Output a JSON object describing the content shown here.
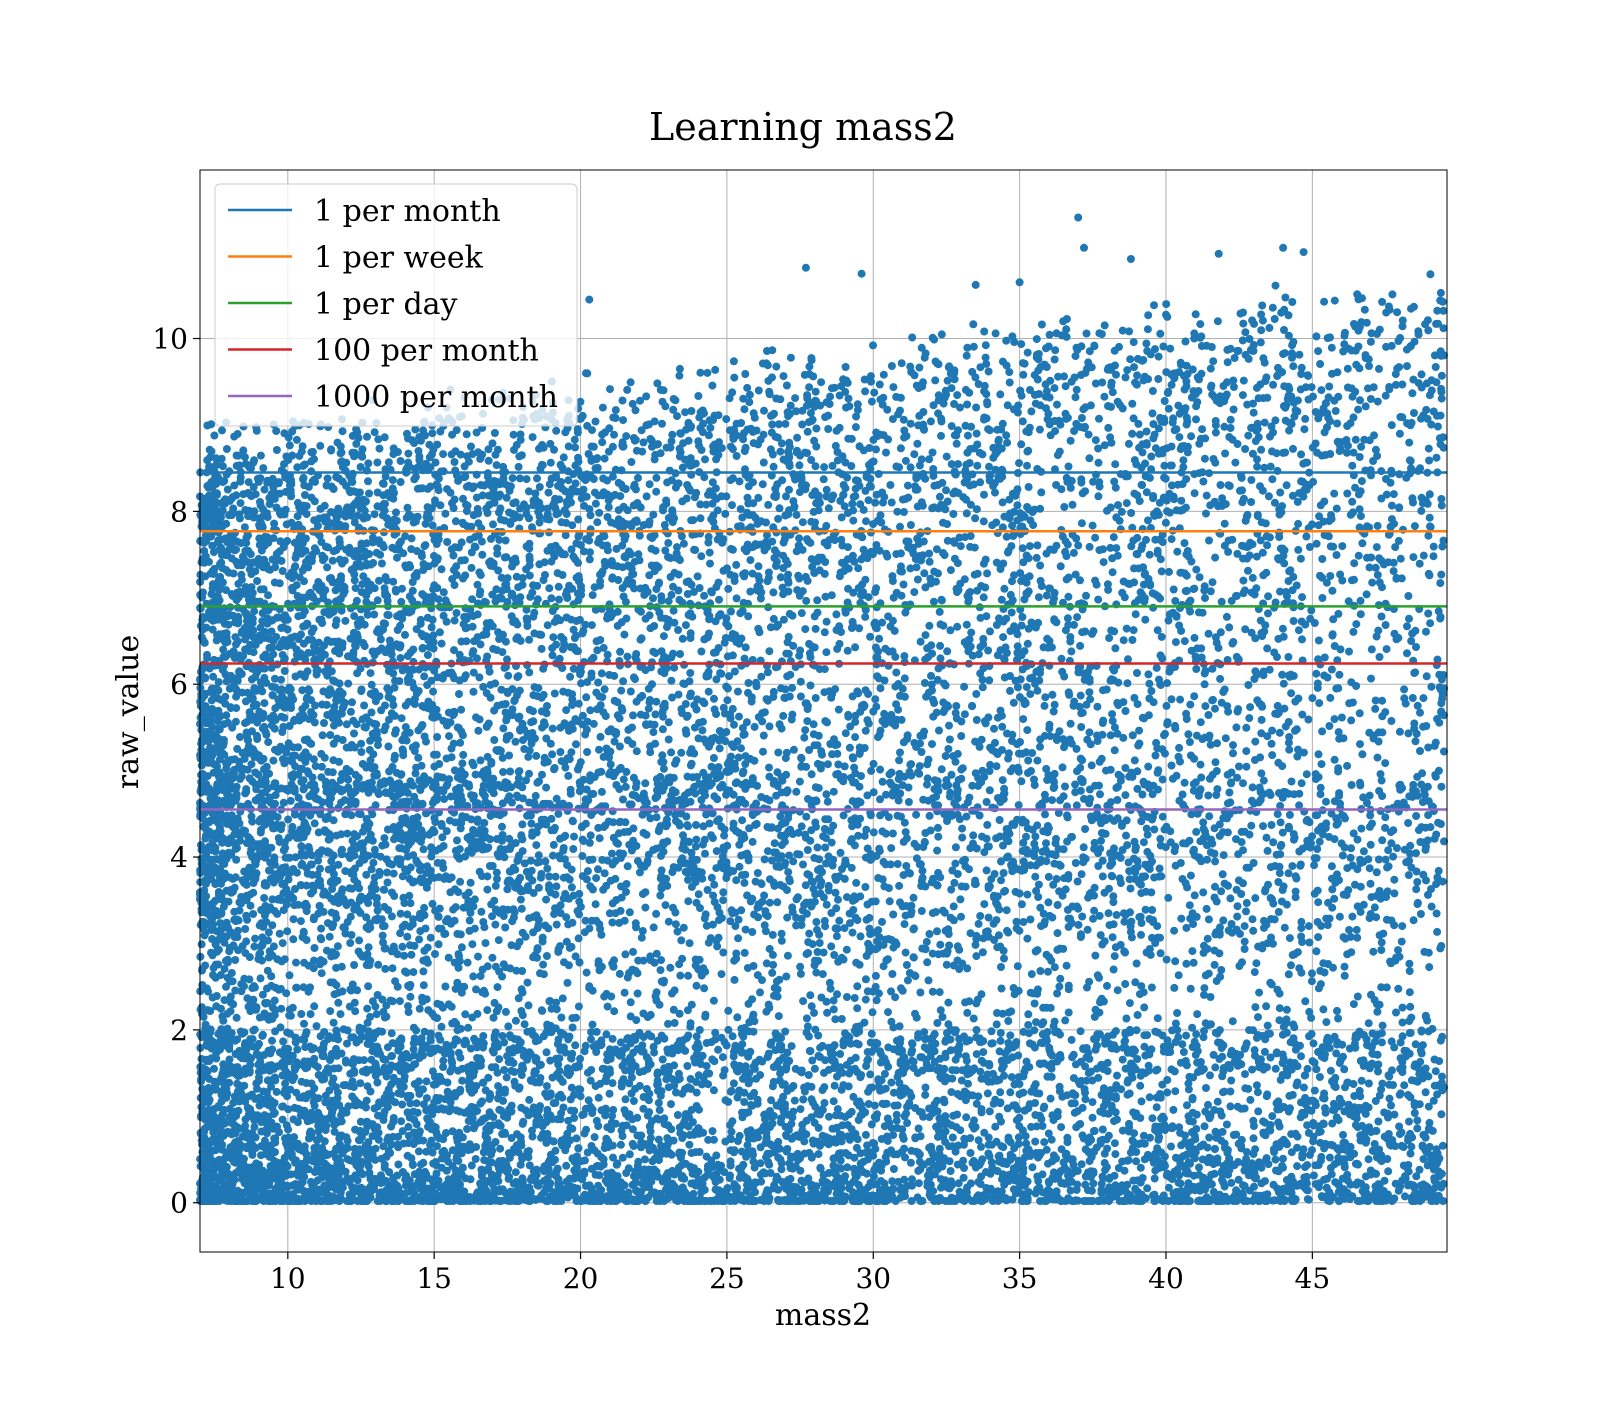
{
  "chart_data": {
    "type": "scatter",
    "title": "Learning mass2",
    "xlabel": "mass2",
    "ylabel": "raw_value",
    "xlim": [
      7.0,
      49.6
    ],
    "ylim": [
      -0.57,
      11.95
    ],
    "xticks": [
      10,
      15,
      20,
      25,
      30,
      35,
      40,
      45
    ],
    "yticks": [
      0,
      2,
      4,
      6,
      8,
      10
    ],
    "grid": true,
    "legend_placement": "upper-left",
    "scatter": {
      "color": "#1f77b4",
      "notable_points": [
        {
          "x": 37.0,
          "y": 11.4
        },
        {
          "x": 37.2,
          "y": 11.05
        },
        {
          "x": 44.0,
          "y": 11.05
        },
        {
          "x": 44.7,
          "y": 11.0
        },
        {
          "x": 41.8,
          "y": 10.98
        },
        {
          "x": 38.8,
          "y": 10.92
        },
        {
          "x": 27.7,
          "y": 10.82
        },
        {
          "x": 29.6,
          "y": 10.75
        },
        {
          "x": 20.3,
          "y": 10.45
        },
        {
          "x": 35.0,
          "y": 10.65
        },
        {
          "x": 33.5,
          "y": 10.62
        },
        {
          "x": 49.4,
          "y": 9.8
        },
        {
          "x": 49.5,
          "y": 5.95
        },
        {
          "x": 48.6,
          "y": 5.75
        },
        {
          "x": 49.2,
          "y": 4.95
        },
        {
          "x": 48.5,
          "y": 0.1
        },
        {
          "x": 47.8,
          "y": 0.05
        },
        {
          "x": 45.6,
          "y": 0.05
        }
      ]
    },
    "series": [
      {
        "name": "1 per month",
        "y": 8.45,
        "color": "#1f77b4"
      },
      {
        "name": "1 per week",
        "y": 7.77,
        "color": "#ff7f0e"
      },
      {
        "name": "1 per day",
        "y": 6.9,
        "color": "#2ca02c"
      },
      {
        "name": "100 per month",
        "y": 6.24,
        "color": "#d62728"
      },
      {
        "name": "1000 per month",
        "y": 4.55,
        "color": "#9467bd"
      }
    ]
  }
}
